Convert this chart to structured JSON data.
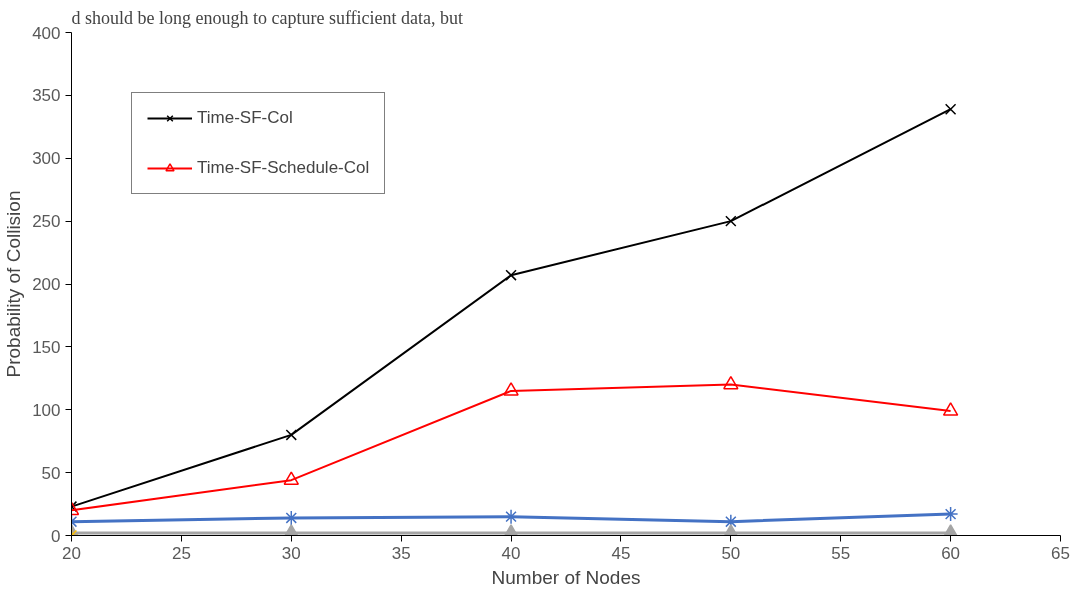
{
  "chart_data": {
    "type": "line",
    "xlabel": "Number of Nodes",
    "ylabel": "Probability of Collision",
    "annotations": [
      "d should be long enough to capture sufficient data, but"
    ],
    "x": [
      20,
      30,
      40,
      50,
      60
    ],
    "series": [
      {
        "name": "Time-SF-Col",
        "color": "#000000",
        "marker": "cross",
        "values": [
          23,
          80,
          207,
          250,
          339
        ]
      },
      {
        "name": "Time-SF-Schedule-Col",
        "color": "#ff0000",
        "marker": "triangle",
        "values": [
          20,
          44,
          115,
          120,
          99
        ]
      },
      {
        "color": "#4472c4",
        "marker": "cross",
        "values": [
          11,
          14,
          15,
          11,
          17
        ]
      },
      {
        "color": "#a5a5a5",
        "marker": "triangle",
        "values": [
          2,
          2,
          2,
          2,
          2
        ]
      },
      {
        "color": "#ffc000",
        "marker": "cross",
        "values": [
          0,
          null,
          null,
          null,
          null
        ]
      }
    ],
    "xlim": [
      20,
      65
    ],
    "xticks": [
      20,
      25,
      30,
      35,
      40,
      45,
      50,
      55,
      60,
      65
    ],
    "ylim": [
      0,
      400
    ],
    "yticks": [
      0,
      50,
      100,
      150,
      200,
      250,
      300,
      350,
      400
    ],
    "grid": false,
    "legend": "top left"
  }
}
